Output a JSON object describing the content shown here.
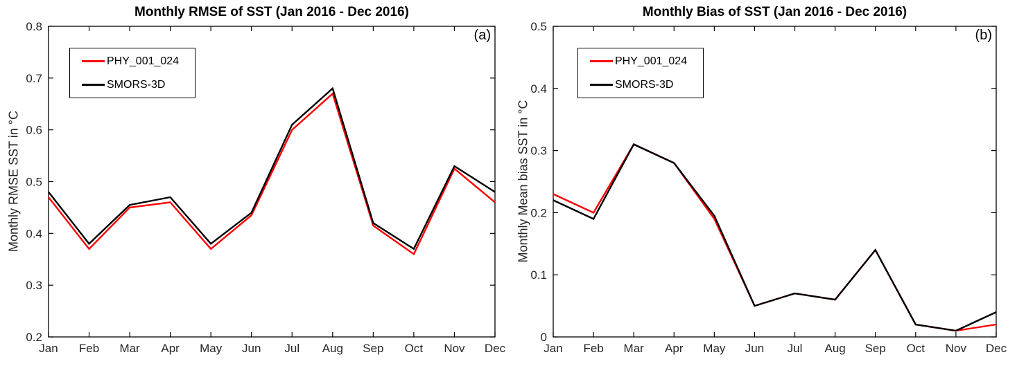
{
  "colors": {
    "axis": "#000000",
    "tick_label": "#262626",
    "title_text": "#000000",
    "series_red": "#ff0000",
    "series_black": "#000000"
  },
  "chart_data": [
    {
      "type": "line",
      "panel_tag": "(a)",
      "title": "Monthly RMSE of SST (Jan 2016 - Dec 2016)",
      "xlabel": "",
      "ylabel": "Monthly RMSE SST in °C",
      "categories": [
        "Jan",
        "Feb",
        "Mar",
        "Apr",
        "May",
        "Jun",
        "Jul",
        "Aug",
        "Sep",
        "Oct",
        "Nov",
        "Dec"
      ],
      "series": [
        {
          "name": "PHY_001_024",
          "color": "#ff0000",
          "values": [
            0.47,
            0.37,
            0.45,
            0.46,
            0.37,
            0.435,
            0.6,
            0.67,
            0.415,
            0.36,
            0.525,
            0.46
          ]
        },
        {
          "name": "SMORS-3D",
          "color": "#000000",
          "values": [
            0.48,
            0.38,
            0.455,
            0.47,
            0.38,
            0.44,
            0.61,
            0.68,
            0.42,
            0.37,
            0.53,
            0.48
          ]
        }
      ],
      "ylim": [
        0.2,
        0.8
      ],
      "yticks": [
        0.2,
        0.3,
        0.4,
        0.5,
        0.6,
        0.7,
        0.8
      ],
      "ytick_labels": [
        "0.2",
        "0.3",
        "0.4",
        "0.5",
        "0.6",
        "0.7",
        "0.8"
      ],
      "grid": false,
      "legend_position": "upper left",
      "box": true
    },
    {
      "type": "line",
      "panel_tag": "(b)",
      "title": "Monthly Bias of SST (Jan 2016 - Dec 2016)",
      "xlabel": "",
      "ylabel": "Monthly Mean bias SST in °C",
      "categories": [
        "Jan",
        "Feb",
        "Mar",
        "Apr",
        "May",
        "Jun",
        "Jul",
        "Aug",
        "Sep",
        "Oct",
        "Nov",
        "Dec"
      ],
      "series": [
        {
          "name": "PHY_001_024",
          "color": "#ff0000",
          "values": [
            0.23,
            0.2,
            0.31,
            0.28,
            0.19,
            0.05,
            0.07,
            0.06,
            0.14,
            0.02,
            0.01,
            0.02
          ]
        },
        {
          "name": "SMORS-3D",
          "color": "#000000",
          "values": [
            0.22,
            0.19,
            0.31,
            0.28,
            0.195,
            0.05,
            0.07,
            0.06,
            0.14,
            0.02,
            0.01,
            0.04
          ]
        }
      ],
      "ylim": [
        0,
        0.5
      ],
      "yticks": [
        0,
        0.1,
        0.2,
        0.3,
        0.4,
        0.5
      ],
      "ytick_labels": [
        "0",
        "0.1",
        "0.2",
        "0.3",
        "0.4",
        "0.5"
      ],
      "grid": false,
      "legend_position": "upper left",
      "box": true
    }
  ]
}
